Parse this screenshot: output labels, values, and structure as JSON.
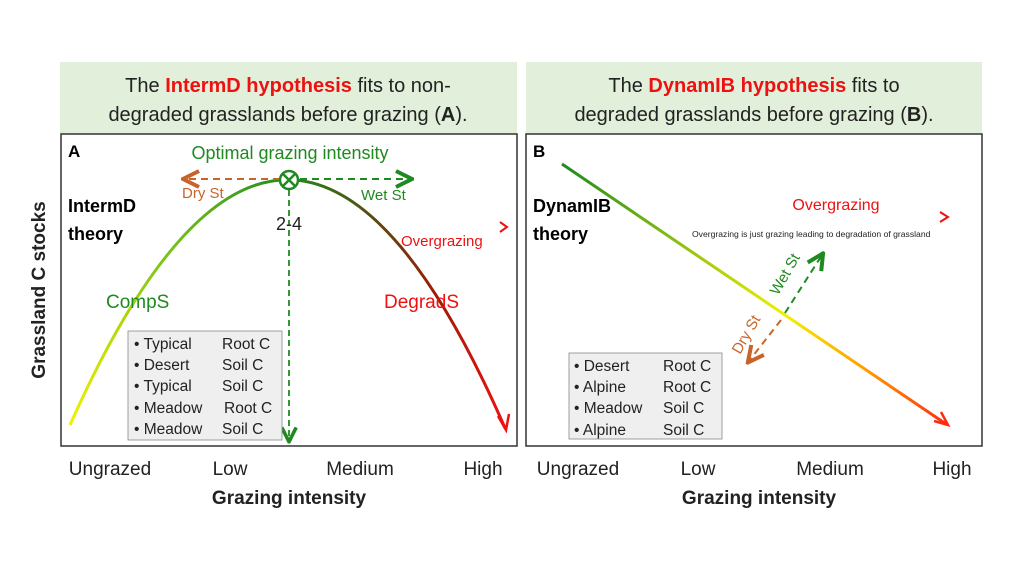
{
  "y_axis_label": "Grassland C stocks",
  "x_axis_label": "Grazing intensity",
  "x_ticks": [
    "Ungrazed",
    "Low",
    "Medium",
    "High"
  ],
  "panel_a": {
    "header": {
      "pre": "The ",
      "highlight": "IntermD hypothesis",
      "post": " fits to non-",
      "line2_pre": "degraded grasslands before grazing (",
      "line2_bold": "A",
      "line2_post": ")."
    },
    "letter": "A",
    "theory": [
      "IntermD",
      "theory"
    ],
    "optimal_label": "Optimal grazing intensity",
    "dry_label": "Dry St",
    "wet_label": "Wet St",
    "peak_value": "2-4",
    "overgrazing_label": "Overgrazing",
    "left_label": "CompS",
    "right_label": "DegradS",
    "legend": [
      [
        "Typical",
        "Root C"
      ],
      [
        "Desert",
        "Soil C"
      ],
      [
        "Typical",
        "Soil C"
      ],
      [
        "Meadow",
        "Root C"
      ],
      [
        "Meadow",
        "Soil C"
      ]
    ]
  },
  "panel_b": {
    "header": {
      "pre": "The ",
      "highlight": "DynamIB hypothesis",
      "post": " fits to",
      "line2_pre": "degraded grasslands before grazing (",
      "line2_bold": "B",
      "line2_post": ")."
    },
    "letter": "B",
    "theory": [
      "DynamIB",
      "theory"
    ],
    "overgrazing_label": "Overgrazing",
    "overgrazing_note": "Overgrazing is just grazing leading to degradation of grassland",
    "dry_label": "Dry St",
    "wet_label": "Wet St",
    "legend": [
      [
        "Desert",
        "Root C"
      ],
      [
        "Alpine",
        "Root C"
      ],
      [
        "Meadow",
        "Soil C"
      ],
      [
        "Alpine",
        "Soil C"
      ]
    ]
  },
  "colors": {
    "header_bg": "#e2efda",
    "green": "#1f8a1f",
    "red": "#ee1111",
    "orange": "#c8642a",
    "legend_bg": "#efefef"
  }
}
